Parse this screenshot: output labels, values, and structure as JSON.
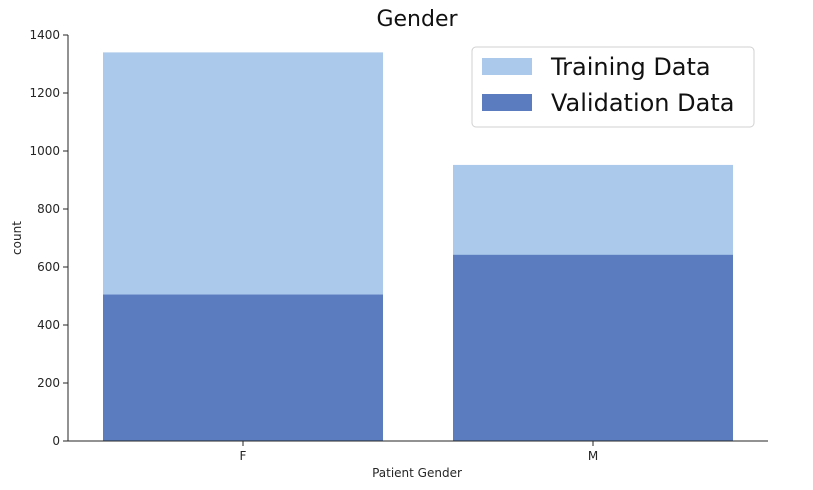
{
  "chart_data": {
    "type": "bar",
    "title": "Gender",
    "xlabel": "Patient Gender",
    "ylabel": "count",
    "categories": [
      "F",
      "M"
    ],
    "ylim": [
      0,
      1400
    ],
    "yticks": [
      0,
      200,
      400,
      600,
      800,
      1000,
      1200,
      1400
    ],
    "grid": false,
    "legend_position": "top-right",
    "overlay": true,
    "series": [
      {
        "name": "Training Data",
        "values": [
          1340,
          952
        ],
        "color": "#abc9ea"
      },
      {
        "name": "Validation Data",
        "values": [
          505,
          642
        ],
        "color": "#5b7dc0"
      }
    ]
  }
}
